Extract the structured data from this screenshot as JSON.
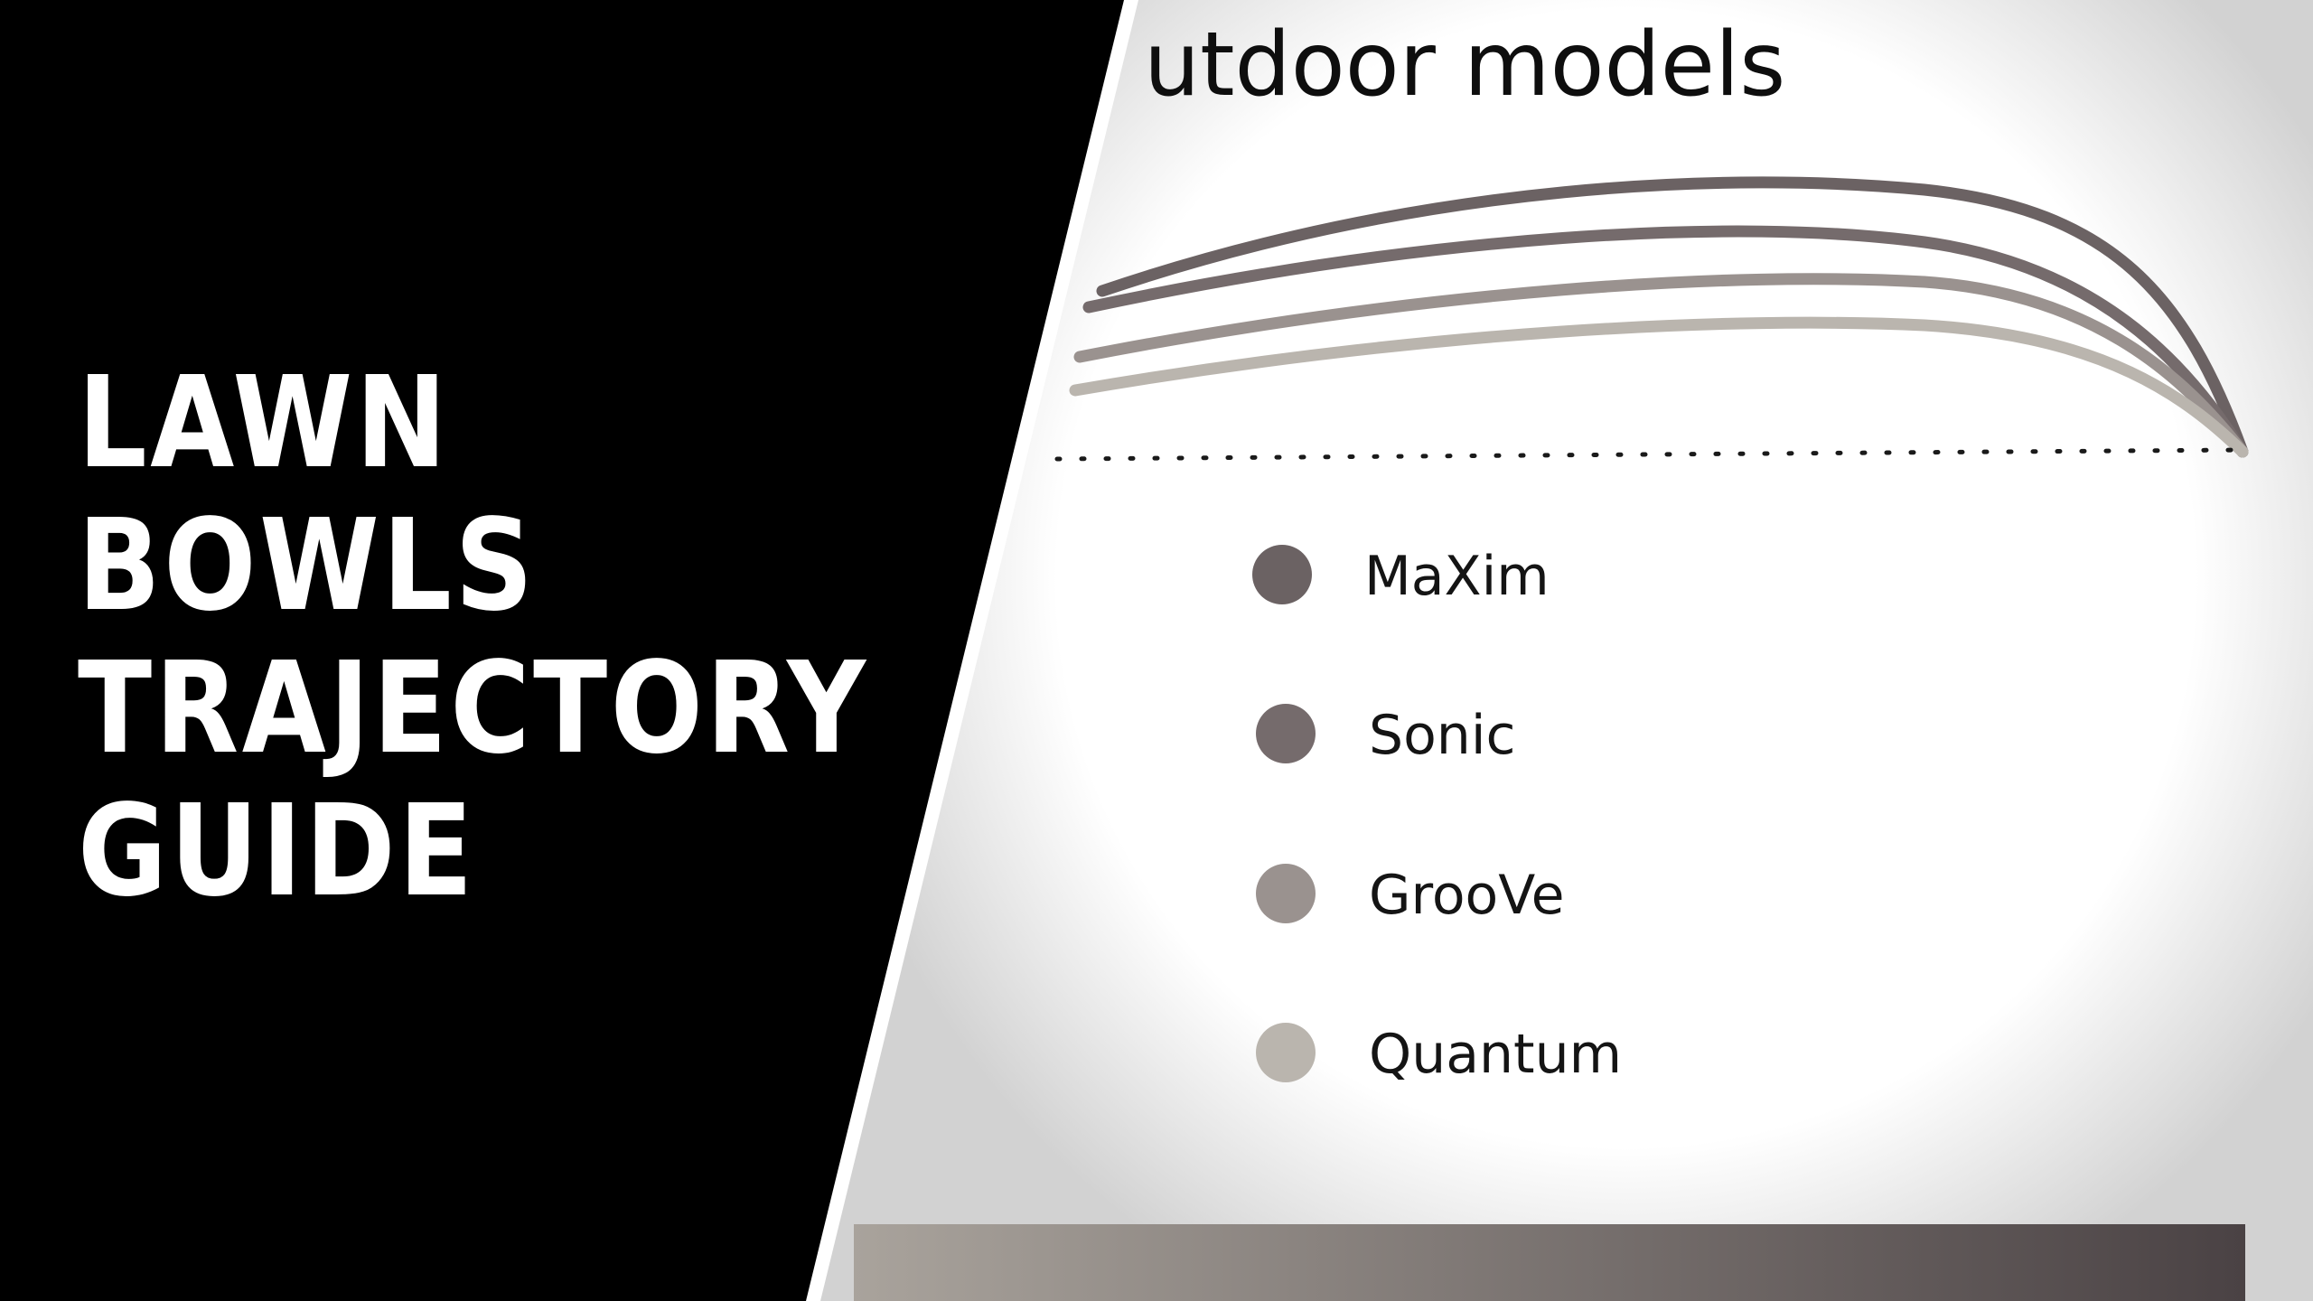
{
  "panel_heading": "utdoor models",
  "banner": {
    "title_lines": [
      "LAWN",
      "BOWLS",
      "TRAJECTORY",
      "GUIDE"
    ]
  },
  "models": [
    {
      "name": "MaXim",
      "color": "#6b6263"
    },
    {
      "name": "Sonic",
      "color": "#756b6c"
    },
    {
      "name": "GrooVe",
      "color": "#9a928f"
    },
    {
      "name": "Quantum",
      "color": "#bab5ae"
    }
  ],
  "colors": {
    "left_panel": "#000000",
    "divider": "#ffffff",
    "baseline_dots": "#1a1a1a",
    "bar_start": "#a9a39c",
    "bar_end": "#4a4244"
  }
}
